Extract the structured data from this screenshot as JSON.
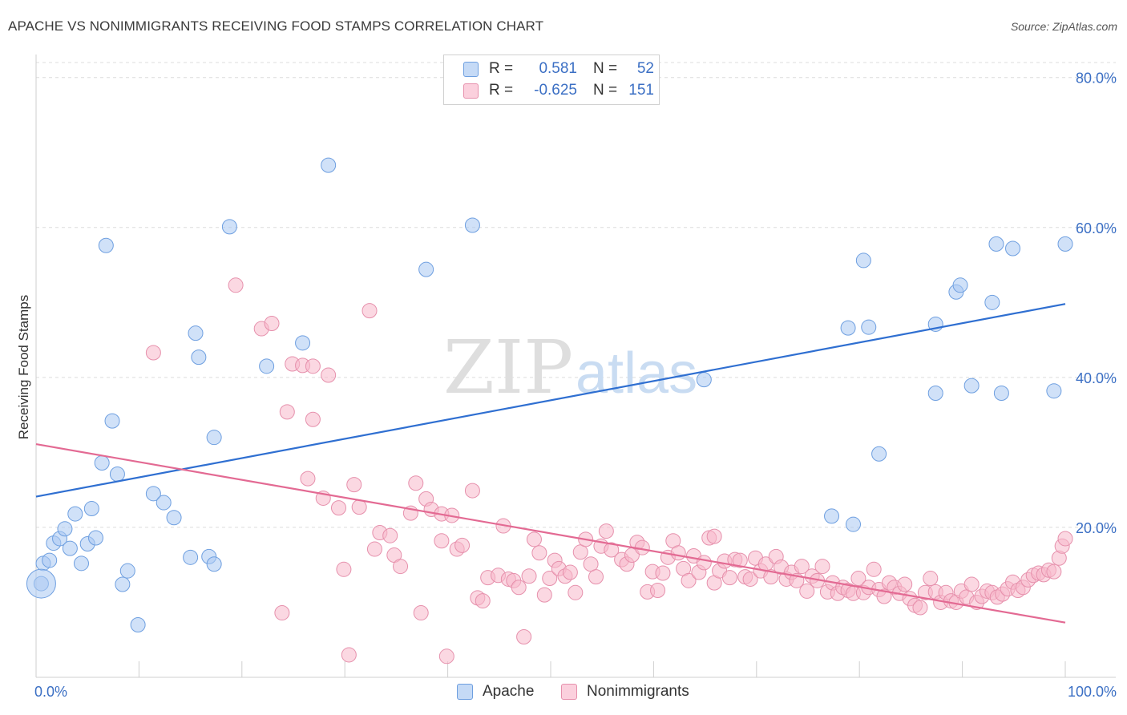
{
  "title": "APACHE VS NONIMMIGRANTS RECEIVING FOOD STAMPS CORRELATION CHART",
  "source": "Source: ZipAtlas.com",
  "watermark": {
    "zip": "ZIP",
    "atlas": "atlas"
  },
  "legend": {
    "rows": [
      {
        "r_label": "R =",
        "r_value": "0.581",
        "n_label": "N =",
        "n_value": "52",
        "color": "#a9c9f3",
        "border": "#6e9fe0"
      },
      {
        "r_label": "R =",
        "r_value": "-0.625",
        "n_label": "N =",
        "n_value": "151",
        "color": "#f7b8cb",
        "border": "#e690ac"
      }
    ]
  },
  "bottom_legend": [
    {
      "label": "Apache",
      "color": "#a9c9f3",
      "border": "#6e9fe0"
    },
    {
      "label": "Nonimmigrants",
      "color": "#f7b8cb",
      "border": "#e690ac"
    }
  ],
  "chart_data": {
    "type": "scatter",
    "title": "APACHE VS NONIMMIGRANTS RECEIVING FOOD STAMPS CORRELATION CHART",
    "xlabel": "",
    "ylabel": "Receiving Food Stamps",
    "xlim": [
      0,
      100
    ],
    "ylim": [
      0,
      82
    ],
    "x_tick_labels": [
      "0.0%",
      "100.0%"
    ],
    "y_ticks": [
      20,
      40,
      60,
      80
    ],
    "y_tick_labels": [
      "20.0%",
      "40.0%",
      "60.0%",
      "80.0%"
    ],
    "grid": true,
    "series": [
      {
        "name": "Apache",
        "color": "#a9c9f3",
        "stroke": "#6e9fe0",
        "line_color": "#2f6fd1",
        "trend": {
          "x": [
            0,
            100
          ],
          "y": [
            24.1,
            49.8
          ]
        },
        "points": [
          [
            0.5,
            12.5
          ],
          [
            0.7,
            15.2
          ],
          [
            1.3,
            15.6
          ],
          [
            1.7,
            17.9
          ],
          [
            2.3,
            18.5
          ],
          [
            2.8,
            19.8
          ],
          [
            3.3,
            17.2
          ],
          [
            3.8,
            21.8
          ],
          [
            4.4,
            15.2
          ],
          [
            5.0,
            17.8
          ],
          [
            5.4,
            22.5
          ],
          [
            5.8,
            18.6
          ],
          [
            6.4,
            28.6
          ],
          [
            6.8,
            57.6
          ],
          [
            7.4,
            34.2
          ],
          [
            7.9,
            27.1
          ],
          [
            8.4,
            12.4
          ],
          [
            8.9,
            14.2
          ],
          [
            9.9,
            7.0
          ],
          [
            11.4,
            24.5
          ],
          [
            12.4,
            23.3
          ],
          [
            13.4,
            21.3
          ],
          [
            15.0,
            16.0
          ],
          [
            15.5,
            45.9
          ],
          [
            15.8,
            42.7
          ],
          [
            16.8,
            16.1
          ],
          [
            17.3,
            15.1
          ],
          [
            17.3,
            32.0
          ],
          [
            18.8,
            60.1
          ],
          [
            22.4,
            41.5
          ],
          [
            25.9,
            44.6
          ],
          [
            28.4,
            68.3
          ],
          [
            37.9,
            54.4
          ],
          [
            42.4,
            60.3
          ],
          [
            64.9,
            39.7
          ],
          [
            77.3,
            21.5
          ],
          [
            78.9,
            46.6
          ],
          [
            79.4,
            20.4
          ],
          [
            80.4,
            55.6
          ],
          [
            80.9,
            46.7
          ],
          [
            81.9,
            29.8
          ],
          [
            87.4,
            37.9
          ],
          [
            87.4,
            47.1
          ],
          [
            89.4,
            51.4
          ],
          [
            89.8,
            52.3
          ],
          [
            90.9,
            38.9
          ],
          [
            92.9,
            50.0
          ],
          [
            93.3,
            57.8
          ],
          [
            93.8,
            37.9
          ],
          [
            94.9,
            57.2
          ],
          [
            98.9,
            38.2
          ],
          [
            100.0,
            57.8
          ]
        ]
      },
      {
        "name": "Nonimmigrants",
        "color": "#f7b8cb",
        "stroke": "#e690ac",
        "line_color": "#e36a93",
        "trend": {
          "x": [
            0,
            100
          ],
          "y": [
            31.1,
            7.3
          ]
        },
        "points": [
          [
            11.4,
            43.3
          ],
          [
            19.4,
            52.3
          ],
          [
            21.9,
            46.5
          ],
          [
            22.9,
            47.2
          ],
          [
            24.4,
            35.4
          ],
          [
            24.9,
            41.8
          ],
          [
            25.9,
            41.6
          ],
          [
            26.4,
            26.5
          ],
          [
            26.9,
            34.4
          ],
          [
            26.9,
            41.5
          ],
          [
            27.9,
            23.9
          ],
          [
            28.4,
            40.3
          ],
          [
            29.4,
            22.6
          ],
          [
            29.9,
            14.4
          ],
          [
            30.4,
            3.0
          ],
          [
            30.9,
            25.7
          ],
          [
            31.4,
            22.7
          ],
          [
            32.4,
            48.9
          ],
          [
            32.9,
            17.1
          ],
          [
            33.4,
            19.3
          ],
          [
            34.4,
            18.9
          ],
          [
            34.8,
            16.3
          ],
          [
            35.4,
            14.8
          ],
          [
            36.4,
            21.9
          ],
          [
            36.9,
            25.9
          ],
          [
            37.4,
            8.6
          ],
          [
            37.9,
            23.8
          ],
          [
            38.4,
            22.4
          ],
          [
            39.4,
            21.8
          ],
          [
            39.4,
            18.2
          ],
          [
            39.9,
            2.8
          ],
          [
            40.4,
            21.6
          ],
          [
            40.9,
            17.1
          ],
          [
            41.4,
            17.6
          ],
          [
            42.4,
            24.9
          ],
          [
            42.9,
            10.6
          ],
          [
            43.4,
            10.2
          ],
          [
            43.9,
            13.3
          ],
          [
            44.9,
            13.6
          ],
          [
            45.4,
            20.2
          ],
          [
            45.9,
            13.1
          ],
          [
            46.4,
            12.9
          ],
          [
            46.9,
            12.0
          ],
          [
            47.4,
            5.4
          ],
          [
            47.9,
            13.5
          ],
          [
            48.4,
            18.4
          ],
          [
            48.9,
            16.6
          ],
          [
            49.4,
            11.0
          ],
          [
            49.9,
            13.2
          ],
          [
            50.4,
            15.6
          ],
          [
            50.8,
            14.5
          ],
          [
            51.4,
            13.5
          ],
          [
            51.9,
            14.0
          ],
          [
            52.4,
            11.3
          ],
          [
            52.9,
            16.7
          ],
          [
            53.4,
            18.4
          ],
          [
            53.9,
            15.1
          ],
          [
            54.4,
            13.4
          ],
          [
            54.9,
            17.5
          ],
          [
            55.4,
            19.5
          ],
          [
            55.9,
            17.0
          ],
          [
            56.9,
            15.7
          ],
          [
            57.4,
            15.1
          ],
          [
            57.9,
            16.3
          ],
          [
            58.4,
            18.0
          ],
          [
            58.9,
            17.3
          ],
          [
            59.4,
            11.4
          ],
          [
            59.9,
            14.1
          ],
          [
            60.4,
            11.6
          ],
          [
            60.9,
            13.9
          ],
          [
            61.4,
            16.0
          ],
          [
            61.9,
            18.2
          ],
          [
            62.4,
            16.6
          ],
          [
            62.9,
            14.5
          ],
          [
            63.4,
            12.9
          ],
          [
            63.9,
            16.2
          ],
          [
            64.4,
            14.0
          ],
          [
            64.9,
            15.3
          ],
          [
            65.4,
            18.6
          ],
          [
            65.9,
            12.6
          ],
          [
            66.4,
            14.2
          ],
          [
            66.9,
            15.5
          ],
          [
            67.4,
            13.3
          ],
          [
            67.9,
            15.7
          ],
          [
            68.4,
            15.6
          ],
          [
            68.9,
            13.4
          ],
          [
            69.4,
            13.1
          ],
          [
            69.9,
            15.9
          ],
          [
            70.4,
            14.2
          ],
          [
            70.9,
            15.1
          ],
          [
            71.4,
            13.4
          ],
          [
            71.9,
            16.1
          ],
          [
            72.4,
            14.7
          ],
          [
            72.9,
            13.1
          ],
          [
            73.4,
            14.0
          ],
          [
            73.9,
            12.9
          ],
          [
            74.4,
            14.8
          ],
          [
            74.9,
            11.5
          ],
          [
            75.4,
            13.5
          ],
          [
            75.9,
            12.9
          ],
          [
            76.4,
            14.8
          ],
          [
            76.9,
            11.4
          ],
          [
            77.4,
            12.6
          ],
          [
            77.9,
            11.2
          ],
          [
            78.4,
            12.0
          ],
          [
            78.9,
            11.6
          ],
          [
            79.4,
            11.2
          ],
          [
            79.9,
            13.2
          ],
          [
            80.4,
            11.3
          ],
          [
            80.9,
            12.0
          ],
          [
            81.4,
            14.4
          ],
          [
            81.9,
            11.7
          ],
          [
            82.4,
            10.8
          ],
          [
            82.9,
            12.6
          ],
          [
            83.4,
            12.0
          ],
          [
            83.9,
            11.2
          ],
          [
            84.4,
            12.4
          ],
          [
            84.9,
            10.5
          ],
          [
            85.4,
            9.6
          ],
          [
            85.9,
            9.3
          ],
          [
            86.4,
            11.3
          ],
          [
            86.9,
            13.2
          ],
          [
            87.4,
            11.4
          ],
          [
            87.9,
            10.0
          ],
          [
            88.4,
            11.3
          ],
          [
            88.9,
            10.2
          ],
          [
            89.4,
            10.0
          ],
          [
            89.9,
            11.5
          ],
          [
            90.4,
            10.7
          ],
          [
            90.9,
            12.4
          ],
          [
            91.4,
            10.0
          ],
          [
            91.9,
            10.8
          ],
          [
            92.4,
            11.5
          ],
          [
            92.9,
            11.3
          ],
          [
            93.4,
            10.7
          ],
          [
            93.9,
            11.1
          ],
          [
            94.4,
            11.8
          ],
          [
            94.9,
            12.7
          ],
          [
            95.4,
            11.6
          ],
          [
            95.9,
            12.0
          ],
          [
            96.4,
            13.0
          ],
          [
            96.9,
            13.6
          ],
          [
            97.4,
            13.9
          ],
          [
            97.9,
            13.7
          ],
          [
            98.4,
            14.3
          ],
          [
            98.9,
            14.1
          ],
          [
            99.4,
            15.9
          ],
          [
            99.7,
            17.5
          ],
          [
            100.0,
            18.5
          ],
          [
            65.9,
            18.8
          ],
          [
            23.9,
            8.6
          ]
        ]
      }
    ]
  }
}
